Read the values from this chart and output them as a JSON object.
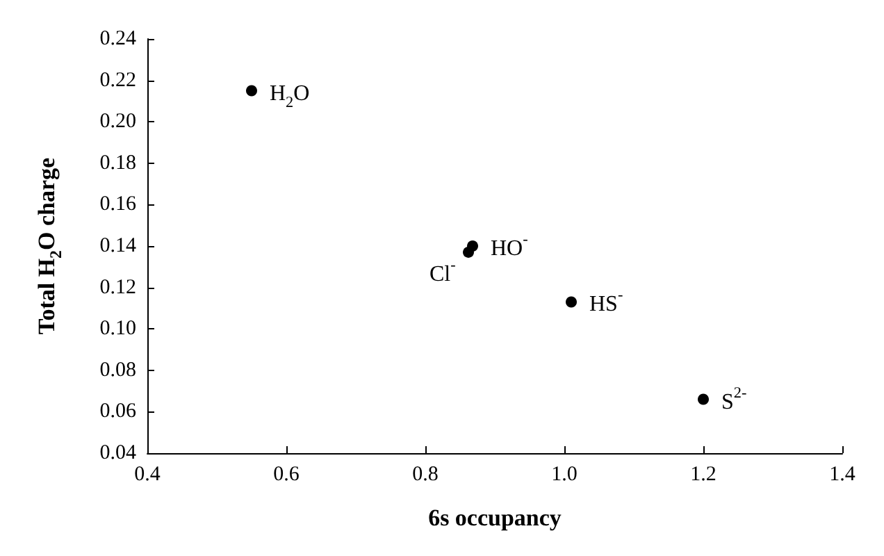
{
  "chart_data": {
    "type": "scatter",
    "xlabel": "6s occupancy",
    "ylabel": "Total H$_{2}$O charge",
    "x": [
      0.55,
      0.862,
      0.868,
      1.01,
      1.2
    ],
    "series": [
      {
        "color": "#000000",
        "values": [
          0.215,
          0.137,
          0.14,
          0.113,
          0.066
        ]
      }
    ],
    "xlim": [
      0.4,
      1.4
    ],
    "xticks": [
      0.4,
      0.6,
      0.8,
      {
        "value": 1,
        "label": "1.0"
      },
      1.2,
      1.4
    ],
    "ylim": [
      0.04,
      0.24
    ],
    "yticks": [
      0.04,
      0.06,
      0.08,
      {
        "value": 0.1,
        "label": "0.10"
      },
      0.12,
      0.14,
      0.16,
      0.18,
      {
        "value": 0.2,
        "label": "0.20"
      },
      0.22,
      0.24
    ],
    "grid": false,
    "marker": "circle",
    "annotations": [
      {
        "text": "H$_{2}$O",
        "x": 0.55,
        "y": 0.215
      },
      {
        "text": "Cl$^{-}$",
        "x": 0.862,
        "y": 0.137
      },
      {
        "text": "HO$^{-}$",
        "x": 0.868,
        "y": 0.14
      },
      {
        "text": "HS$^{-}$",
        "x": 1.01,
        "y": 0.113
      },
      {
        "text": "S$^{2-}$",
        "x": 1.2,
        "y": 0.066
      }
    ]
  }
}
